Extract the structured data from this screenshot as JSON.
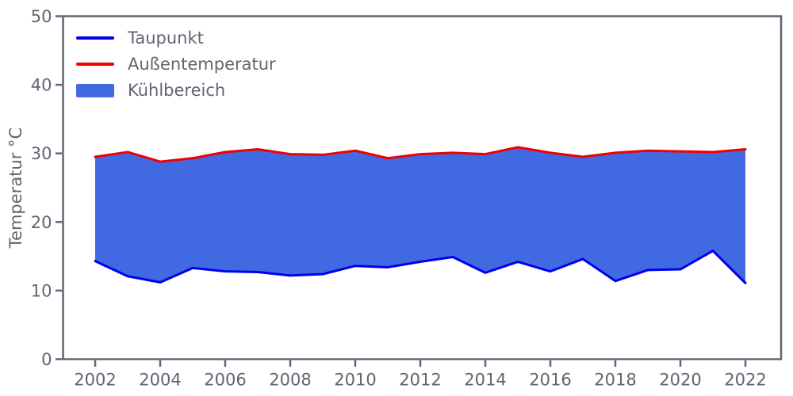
{
  "figure": {
    "background": "#ffffff",
    "axis_color": "#5f6672",
    "text_color": "#5f6672"
  },
  "legend": {
    "position": "upper-left",
    "items": [
      {
        "label": "Taupunkt",
        "type": "line",
        "color": "#0000f0"
      },
      {
        "label": "Außentemperatur",
        "type": "line",
        "color": "#f00000"
      },
      {
        "label": "Kühlbereich",
        "type": "patch",
        "color": "#4169e1"
      }
    ]
  },
  "chart_data": {
    "type": "area",
    "title": "",
    "xlabel": "",
    "ylabel": "Temperatur °C",
    "x": [
      2002,
      2003,
      2004,
      2005,
      2006,
      2007,
      2008,
      2009,
      2010,
      2011,
      2012,
      2013,
      2014,
      2015,
      2016,
      2017,
      2018,
      2019,
      2020,
      2021,
      2022
    ],
    "series": [
      {
        "name": "Taupunkt",
        "color": "#0000f0",
        "values": [
          14.3,
          12.1,
          11.2,
          13.3,
          12.8,
          12.7,
          12.2,
          12.4,
          13.6,
          13.4,
          14.2,
          14.9,
          12.6,
          14.2,
          12.8,
          14.6,
          11.4,
          13.0,
          13.1,
          15.8,
          11.1
        ]
      },
      {
        "name": "Außentemperatur",
        "color": "#f00000",
        "values": [
          29.5,
          30.2,
          28.8,
          29.3,
          30.2,
          30.6,
          29.9,
          29.8,
          30.4,
          29.3,
          29.9,
          30.1,
          29.9,
          30.9,
          30.1,
          29.5,
          30.1,
          30.4,
          30.3,
          30.2,
          30.6
        ]
      }
    ],
    "fill_between": {
      "name": "Kühlbereich",
      "color": "#4169e1",
      "between": [
        "Taupunkt",
        "Außentemperatur"
      ]
    },
    "ylim": [
      0,
      50
    ],
    "yticks": [
      0,
      10,
      20,
      30,
      40,
      50
    ],
    "xticks": [
      2002,
      2004,
      2006,
      2008,
      2010,
      2012,
      2014,
      2016,
      2018,
      2020,
      2022
    ],
    "grid": false,
    "legend_position": "upper-left"
  }
}
